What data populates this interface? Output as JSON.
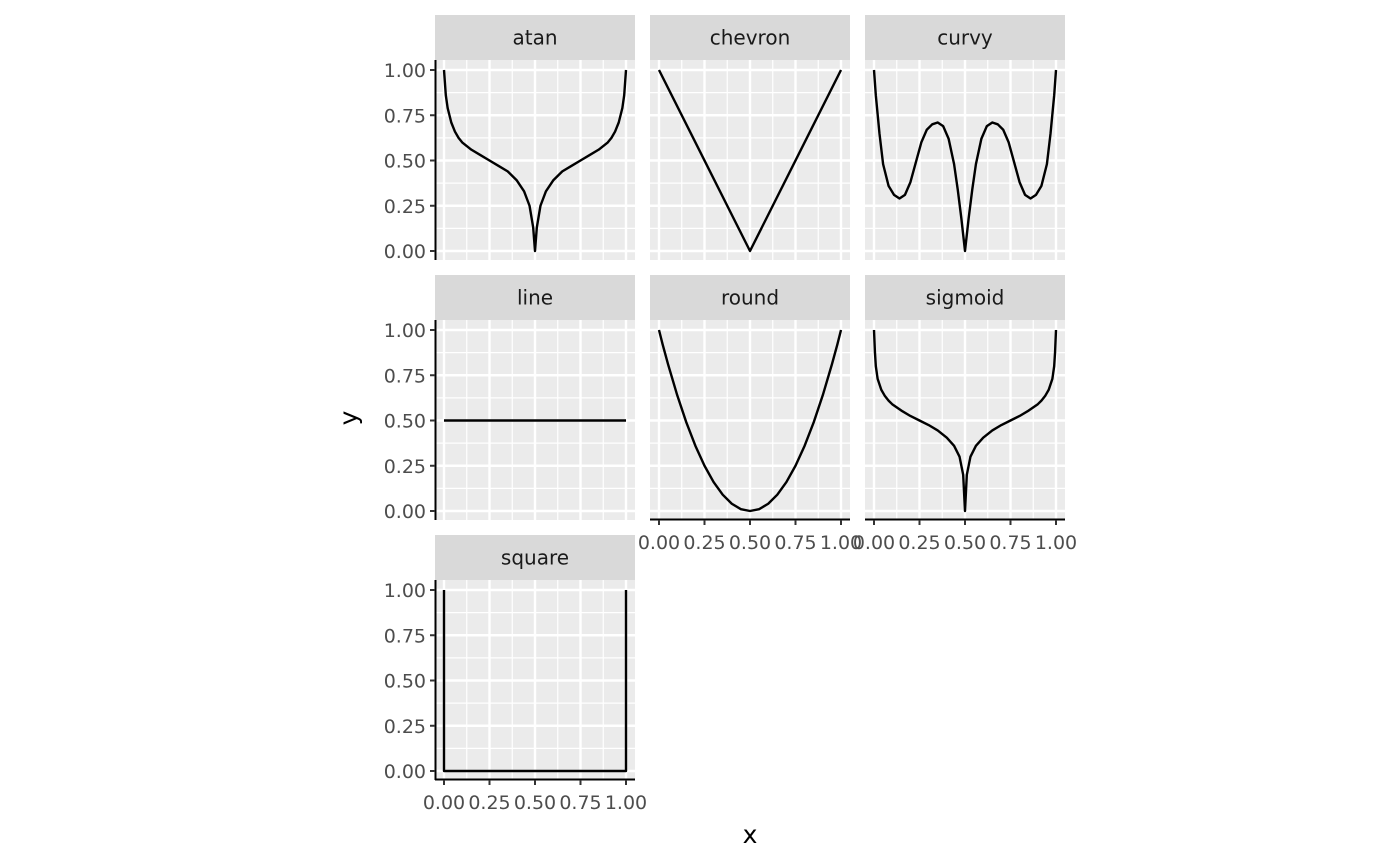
{
  "chart_data": {
    "type": "line",
    "title": "",
    "xlabel": "x",
    "ylabel": "y",
    "xlim": [
      0,
      1
    ],
    "ylim": [
      0,
      1
    ],
    "x_ticks": [
      0,
      0.25,
      0.5,
      0.75,
      1
    ],
    "x_tick_labels": [
      "0.00",
      "0.25",
      "0.50",
      "0.75",
      "1.00"
    ],
    "y_ticks": [
      0,
      0.25,
      0.5,
      0.75,
      1
    ],
    "y_tick_labels": [
      "0.00",
      "0.25",
      "0.50",
      "0.75",
      "1.00"
    ],
    "grid": true,
    "line_color": "#000000",
    "panel_background": "#ebebeb",
    "strip_background": "#d9d9d9",
    "facets": [
      {
        "label": "atan",
        "x": [
          0,
          0.01,
          0.02,
          0.04,
          0.06,
          0.08,
          0.1,
          0.15,
          0.2,
          0.25,
          0.3,
          0.35,
          0.4,
          0.44,
          0.47,
          0.49,
          0.5,
          0.51,
          0.53,
          0.56,
          0.6,
          0.65,
          0.7,
          0.75,
          0.8,
          0.85,
          0.9,
          0.92,
          0.94,
          0.96,
          0.98,
          0.99,
          1
        ],
        "y": [
          1,
          0.86,
          0.79,
          0.71,
          0.66,
          0.625,
          0.6,
          0.56,
          0.53,
          0.5,
          0.47,
          0.44,
          0.39,
          0.33,
          0.25,
          0.13,
          0,
          0.13,
          0.25,
          0.33,
          0.39,
          0.44,
          0.47,
          0.5,
          0.53,
          0.56,
          0.6,
          0.625,
          0.66,
          0.71,
          0.79,
          0.86,
          1
        ]
      },
      {
        "label": "chevron",
        "x": [
          0,
          0.5,
          1
        ],
        "y": [
          1,
          0,
          1
        ]
      },
      {
        "label": "curvy",
        "x": [
          0,
          0.01,
          0.03,
          0.05,
          0.08,
          0.11,
          0.14,
          0.17,
          0.2,
          0.23,
          0.26,
          0.29,
          0.32,
          0.35,
          0.38,
          0.41,
          0.44,
          0.46,
          0.48,
          0.49,
          0.5,
          0.51,
          0.52,
          0.54,
          0.56,
          0.59,
          0.62,
          0.65,
          0.68,
          0.71,
          0.74,
          0.77,
          0.8,
          0.83,
          0.86,
          0.89,
          0.92,
          0.95,
          0.97,
          0.99,
          1
        ],
        "y": [
          1,
          0.86,
          0.65,
          0.48,
          0.36,
          0.31,
          0.29,
          0.31,
          0.38,
          0.49,
          0.6,
          0.67,
          0.7,
          0.71,
          0.69,
          0.62,
          0.48,
          0.34,
          0.18,
          0.09,
          0,
          0.09,
          0.18,
          0.34,
          0.48,
          0.62,
          0.69,
          0.71,
          0.7,
          0.67,
          0.6,
          0.49,
          0.38,
          0.31,
          0.29,
          0.31,
          0.36,
          0.48,
          0.65,
          0.86,
          1
        ]
      },
      {
        "label": "line",
        "x": [
          0,
          1
        ],
        "y": [
          0.5,
          0.5
        ]
      },
      {
        "label": "round",
        "x": [
          0,
          0.02,
          0.05,
          0.1,
          0.15,
          0.2,
          0.25,
          0.3,
          0.35,
          0.4,
          0.45,
          0.5,
          0.55,
          0.6,
          0.65,
          0.7,
          0.75,
          0.8,
          0.85,
          0.9,
          0.95,
          0.98,
          1
        ],
        "y": [
          1,
          0.92,
          0.81,
          0.64,
          0.49,
          0.36,
          0.25,
          0.16,
          0.09,
          0.04,
          0.01,
          0,
          0.01,
          0.04,
          0.09,
          0.16,
          0.25,
          0.36,
          0.49,
          0.64,
          0.81,
          0.92,
          1
        ]
      },
      {
        "label": "sigmoid",
        "x": [
          0,
          0.005,
          0.01,
          0.02,
          0.04,
          0.06,
          0.08,
          0.1,
          0.15,
          0.2,
          0.25,
          0.3,
          0.35,
          0.4,
          0.44,
          0.47,
          0.49,
          0.5,
          0.51,
          0.53,
          0.56,
          0.6,
          0.65,
          0.7,
          0.75,
          0.8,
          0.85,
          0.9,
          0.92,
          0.94,
          0.96,
          0.98,
          0.99,
          0.995,
          1
        ],
        "y": [
          1,
          0.88,
          0.8,
          0.73,
          0.67,
          0.635,
          0.61,
          0.59,
          0.555,
          0.525,
          0.5,
          0.475,
          0.445,
          0.405,
          0.36,
          0.3,
          0.2,
          0,
          0.2,
          0.3,
          0.36,
          0.405,
          0.445,
          0.475,
          0.5,
          0.525,
          0.555,
          0.59,
          0.61,
          0.635,
          0.67,
          0.73,
          0.8,
          0.88,
          1
        ]
      },
      {
        "label": "square",
        "x": [
          0,
          0,
          1,
          1
        ],
        "y": [
          1,
          0,
          0,
          1
        ]
      }
    ]
  }
}
